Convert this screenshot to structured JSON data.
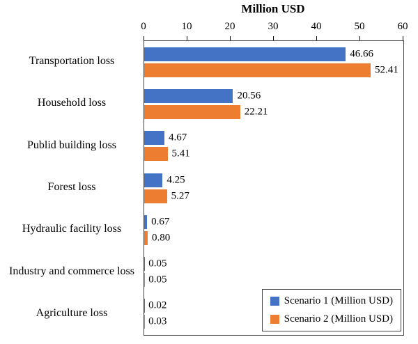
{
  "chart_data": {
    "type": "bar",
    "orientation": "horizontal",
    "title": "Million USD",
    "categories": [
      "Transportation loss",
      "Household loss",
      "Publid building loss",
      "Forest loss",
      "Hydraulic facility loss",
      "Industry and commerce loss",
      "Agriculture loss"
    ],
    "series": [
      {
        "name": "Scenario 1 (Million USD)",
        "color": "#4472C4",
        "values": [
          46.66,
          20.56,
          4.67,
          4.25,
          0.67,
          0.05,
          0.02
        ]
      },
      {
        "name": "Scenario 2 (Million USD)",
        "color": "#ED7D31",
        "values": [
          52.41,
          22.21,
          5.41,
          5.27,
          0.8,
          0.05,
          0.03
        ]
      }
    ],
    "xlim": [
      0,
      60
    ],
    "xticks": [
      0,
      10,
      20,
      30,
      40,
      50,
      60
    ],
    "grid": false,
    "legend_position": "bottom-right",
    "value_label_format": "2dp"
  }
}
